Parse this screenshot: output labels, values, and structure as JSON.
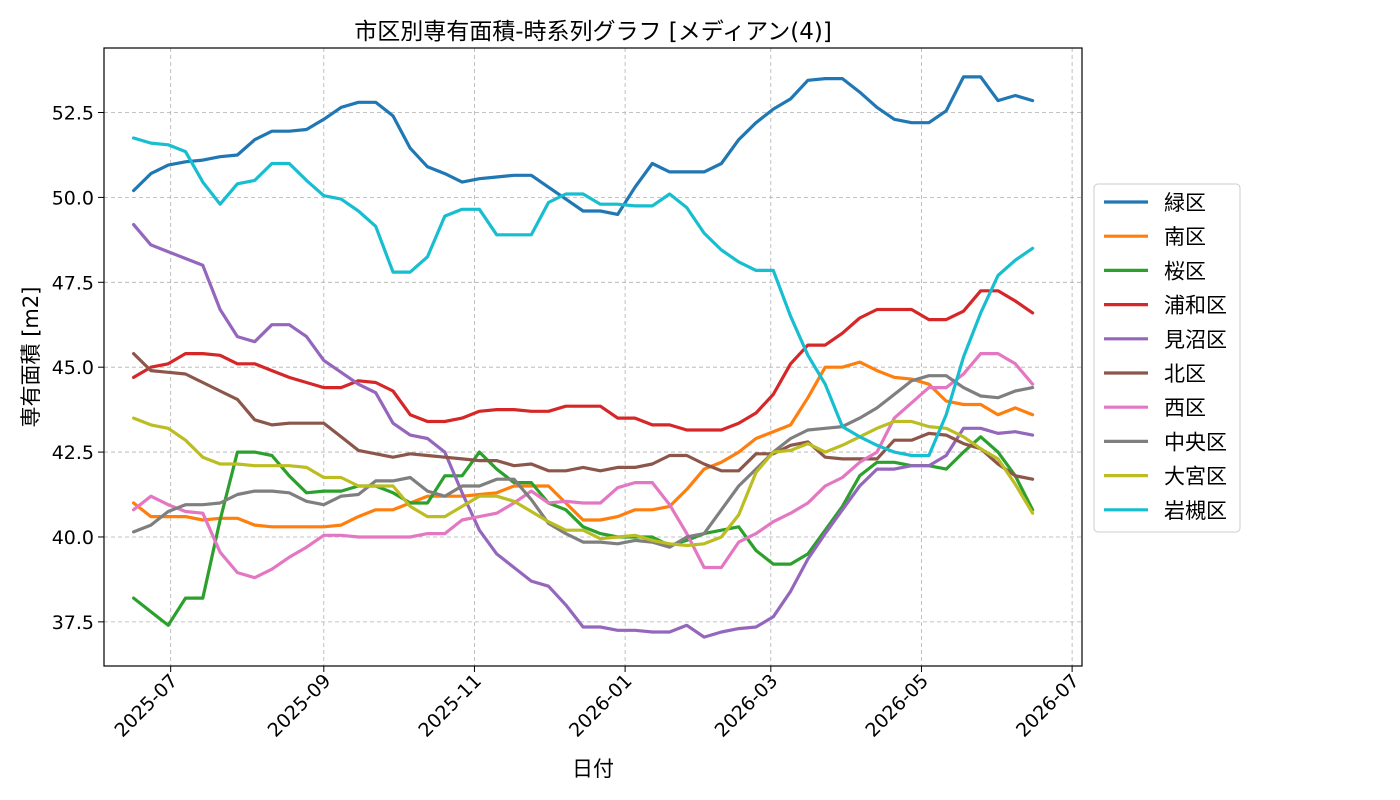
{
  "chart_data": {
    "type": "line",
    "title": "市区別専有面積-時系列グラフ [メディアン(4)]",
    "xlabel": "日付",
    "ylabel": "専有面積 [m2]",
    "ylim": [
      36.2,
      54.4
    ],
    "xlim": [
      "2025-06-04",
      "2026-07-05"
    ],
    "yticks": [
      37.5,
      40.0,
      42.5,
      45.0,
      47.5,
      50.0,
      52.5
    ],
    "ytick_labels": [
      "37.5",
      "40.0",
      "42.5",
      "45.0",
      "47.5",
      "50.0",
      "52.5"
    ],
    "xticks": [
      "2025-07-01",
      "2025-09-01",
      "2025-11-01",
      "2026-01-01",
      "2026-03-01",
      "2026-05-01",
      "2026-07-01"
    ],
    "xtick_labels": [
      "2025-07",
      "2025-09",
      "2025-11",
      "2026-01",
      "2026-03",
      "2026-05",
      "2026-07"
    ],
    "grid": true,
    "legend_position": "right-outside",
    "x": [
      "2025-06-16",
      "2025-06-23",
      "2025-06-30",
      "2025-07-07",
      "2025-07-14",
      "2025-07-21",
      "2025-07-28",
      "2025-08-04",
      "2025-08-11",
      "2025-08-18",
      "2025-08-25",
      "2025-09-01",
      "2025-09-08",
      "2025-09-15",
      "2025-09-22",
      "2025-09-29",
      "2025-10-06",
      "2025-10-13",
      "2025-10-20",
      "2025-10-27",
      "2025-11-03",
      "2025-11-10",
      "2025-11-17",
      "2025-11-24",
      "2025-12-01",
      "2025-12-08",
      "2025-12-15",
      "2025-12-22",
      "2025-12-29",
      "2026-01-05",
      "2026-01-12",
      "2026-01-19",
      "2026-01-26",
      "2026-02-02",
      "2026-02-09",
      "2026-02-16",
      "2026-02-23",
      "2026-03-02",
      "2026-03-09",
      "2026-03-16",
      "2026-03-23",
      "2026-03-30",
      "2026-04-06",
      "2026-04-13",
      "2026-04-20",
      "2026-04-27",
      "2026-05-04",
      "2026-05-11",
      "2026-05-18",
      "2026-05-25",
      "2026-06-01",
      "2026-06-08",
      "2026-06-15"
    ],
    "series": [
      {
        "name": "緑区",
        "color": "#1f77b4",
        "values": [
          50.2,
          50.7,
          50.95,
          51.05,
          51.1,
          51.2,
          51.25,
          51.7,
          51.95,
          51.95,
          52.0,
          52.3,
          52.65,
          52.8,
          52.8,
          52.4,
          51.45,
          50.9,
          50.7,
          50.45,
          50.55,
          50.6,
          50.65,
          50.65,
          50.3,
          49.95,
          49.6,
          49.6,
          49.5,
          50.3,
          51.0,
          50.75,
          50.75,
          50.75,
          51.0,
          51.7,
          52.2,
          52.6,
          52.9,
          53.45,
          53.5,
          53.5,
          53.1,
          52.65,
          52.3,
          52.2,
          52.2,
          52.55,
          53.55,
          53.55,
          52.85,
          53.0,
          52.85
        ]
      },
      {
        "name": "南区",
        "color": "#ff7f0e",
        "values": [
          41.0,
          40.6,
          40.6,
          40.6,
          40.5,
          40.55,
          40.55,
          40.35,
          40.3,
          40.3,
          40.3,
          40.3,
          40.35,
          40.6,
          40.8,
          40.8,
          41.0,
          41.2,
          41.2,
          41.2,
          41.25,
          41.3,
          41.5,
          41.5,
          41.5,
          41.0,
          40.5,
          40.5,
          40.6,
          40.8,
          40.8,
          40.9,
          41.4,
          42.0,
          42.2,
          42.5,
          42.9,
          43.1,
          43.3,
          44.1,
          45.0,
          45.0,
          45.15,
          44.9,
          44.7,
          44.65,
          44.5,
          44.0,
          43.9,
          43.9,
          43.6,
          43.8,
          43.6
        ]
      },
      {
        "name": "桜区",
        "color": "#2ca02c",
        "values": [
          38.2,
          37.8,
          37.4,
          38.2,
          38.2,
          40.5,
          42.5,
          42.5,
          42.4,
          41.8,
          41.3,
          41.35,
          41.35,
          41.5,
          41.5,
          41.3,
          41.0,
          41.0,
          41.8,
          41.8,
          42.5,
          42.0,
          41.6,
          41.6,
          41.0,
          40.8,
          40.3,
          40.1,
          40.0,
          40.0,
          40.0,
          39.75,
          39.9,
          40.1,
          40.2,
          40.3,
          39.6,
          39.2,
          39.2,
          39.5,
          40.2,
          40.9,
          41.8,
          42.2,
          42.2,
          42.1,
          42.1,
          42.0,
          42.5,
          42.95,
          42.5,
          41.8,
          40.8
        ]
      },
      {
        "name": "浦和区",
        "color": "#d62728",
        "values": [
          44.7,
          45.0,
          45.1,
          45.4,
          45.4,
          45.35,
          45.1,
          45.1,
          44.9,
          44.7,
          44.55,
          44.4,
          44.4,
          44.6,
          44.55,
          44.3,
          43.6,
          43.4,
          43.4,
          43.5,
          43.7,
          43.75,
          43.75,
          43.7,
          43.7,
          43.85,
          43.85,
          43.85,
          43.5,
          43.5,
          43.3,
          43.3,
          43.15,
          43.15,
          43.15,
          43.35,
          43.65,
          44.2,
          45.1,
          45.65,
          45.65,
          46.0,
          46.45,
          46.7,
          46.7,
          46.7,
          46.4,
          46.4,
          46.65,
          47.25,
          47.25,
          46.95,
          46.6
        ]
      },
      {
        "name": "見沼区",
        "color": "#9467bd",
        "values": [
          49.2,
          48.6,
          48.4,
          48.2,
          48.0,
          46.7,
          45.9,
          45.75,
          46.25,
          46.25,
          45.9,
          45.2,
          44.85,
          44.5,
          44.25,
          43.35,
          43.0,
          42.9,
          42.5,
          41.3,
          40.2,
          39.5,
          39.1,
          38.7,
          38.55,
          38.0,
          37.35,
          37.35,
          37.25,
          37.25,
          37.2,
          37.2,
          37.4,
          37.05,
          37.2,
          37.3,
          37.35,
          37.65,
          38.4,
          39.35,
          40.1,
          40.8,
          41.5,
          42.0,
          42.0,
          42.1,
          42.1,
          42.4,
          43.2,
          43.2,
          43.05,
          43.1,
          43.0
        ]
      },
      {
        "name": "北区",
        "color": "#8c564b",
        "values": [
          45.4,
          44.9,
          44.85,
          44.8,
          44.55,
          44.3,
          44.05,
          43.45,
          43.3,
          43.35,
          43.35,
          43.35,
          42.95,
          42.55,
          42.45,
          42.35,
          42.45,
          42.4,
          42.35,
          42.3,
          42.25,
          42.25,
          42.1,
          42.15,
          41.95,
          41.95,
          42.05,
          41.95,
          42.05,
          42.05,
          42.15,
          42.4,
          42.4,
          42.15,
          41.95,
          41.95,
          42.45,
          42.45,
          42.7,
          42.8,
          42.35,
          42.3,
          42.3,
          42.3,
          42.85,
          42.85,
          43.05,
          43.0,
          42.75,
          42.6,
          42.15,
          41.8,
          41.7
        ]
      },
      {
        "name": "西区",
        "color": "#e377c2",
        "values": [
          40.8,
          41.2,
          40.95,
          40.75,
          40.7,
          39.55,
          38.95,
          38.8,
          39.05,
          39.4,
          39.7,
          40.05,
          40.05,
          40.0,
          40.0,
          40.0,
          40.0,
          40.1,
          40.1,
          40.5,
          40.6,
          40.7,
          41.0,
          41.35,
          41.0,
          41.05,
          41.0,
          41.0,
          41.45,
          41.6,
          41.6,
          40.95,
          40.1,
          39.1,
          39.1,
          39.85,
          40.1,
          40.45,
          40.7,
          41.0,
          41.5,
          41.75,
          42.2,
          42.5,
          43.5,
          43.95,
          44.4,
          44.4,
          44.8,
          45.4,
          45.4,
          45.1,
          44.5
        ]
      },
      {
        "name": "中央区",
        "color": "#7f7f7f",
        "values": [
          40.15,
          40.35,
          40.75,
          40.95,
          40.95,
          41.0,
          41.25,
          41.35,
          41.35,
          41.3,
          41.05,
          40.95,
          41.2,
          41.25,
          41.65,
          41.65,
          41.75,
          41.35,
          41.2,
          41.5,
          41.5,
          41.7,
          41.7,
          41.1,
          40.4,
          40.1,
          39.85,
          39.85,
          39.8,
          39.9,
          39.85,
          39.7,
          40.0,
          40.1,
          40.8,
          41.5,
          42.0,
          42.5,
          42.9,
          43.15,
          43.2,
          43.25,
          43.5,
          43.8,
          44.2,
          44.6,
          44.75,
          44.75,
          44.4,
          44.15,
          44.1,
          44.3,
          44.4
        ]
      },
      {
        "name": "大宮区",
        "color": "#bcbd22",
        "values": [
          43.5,
          43.3,
          43.2,
          42.85,
          42.35,
          42.15,
          42.15,
          42.1,
          42.1,
          42.1,
          42.05,
          41.75,
          41.75,
          41.5,
          41.5,
          41.5,
          40.9,
          40.6,
          40.6,
          40.9,
          41.2,
          41.2,
          41.05,
          40.75,
          40.45,
          40.2,
          40.2,
          39.95,
          40.0,
          40.05,
          39.9,
          39.8,
          39.75,
          39.8,
          40.0,
          40.65,
          41.9,
          42.5,
          42.55,
          42.75,
          42.5,
          42.7,
          42.95,
          43.2,
          43.4,
          43.4,
          43.25,
          43.2,
          42.95,
          42.6,
          42.3,
          41.55,
          40.7
        ]
      },
      {
        "name": "岩槻区",
        "color": "#17becf",
        "values": [
          51.75,
          51.6,
          51.55,
          51.35,
          50.45,
          49.8,
          50.4,
          50.5,
          51.0,
          51.0,
          50.5,
          50.05,
          49.95,
          49.6,
          49.15,
          47.8,
          47.8,
          48.25,
          49.45,
          49.65,
          49.65,
          48.9,
          48.9,
          48.9,
          49.85,
          50.1,
          50.1,
          49.8,
          49.8,
          49.75,
          49.75,
          50.1,
          49.7,
          48.95,
          48.45,
          48.1,
          47.85,
          47.85,
          46.5,
          45.35,
          44.5,
          43.25,
          42.95,
          42.7,
          42.5,
          42.4,
          42.4,
          43.6,
          45.3,
          46.6,
          47.7,
          48.15,
          48.5
        ]
      }
    ]
  }
}
